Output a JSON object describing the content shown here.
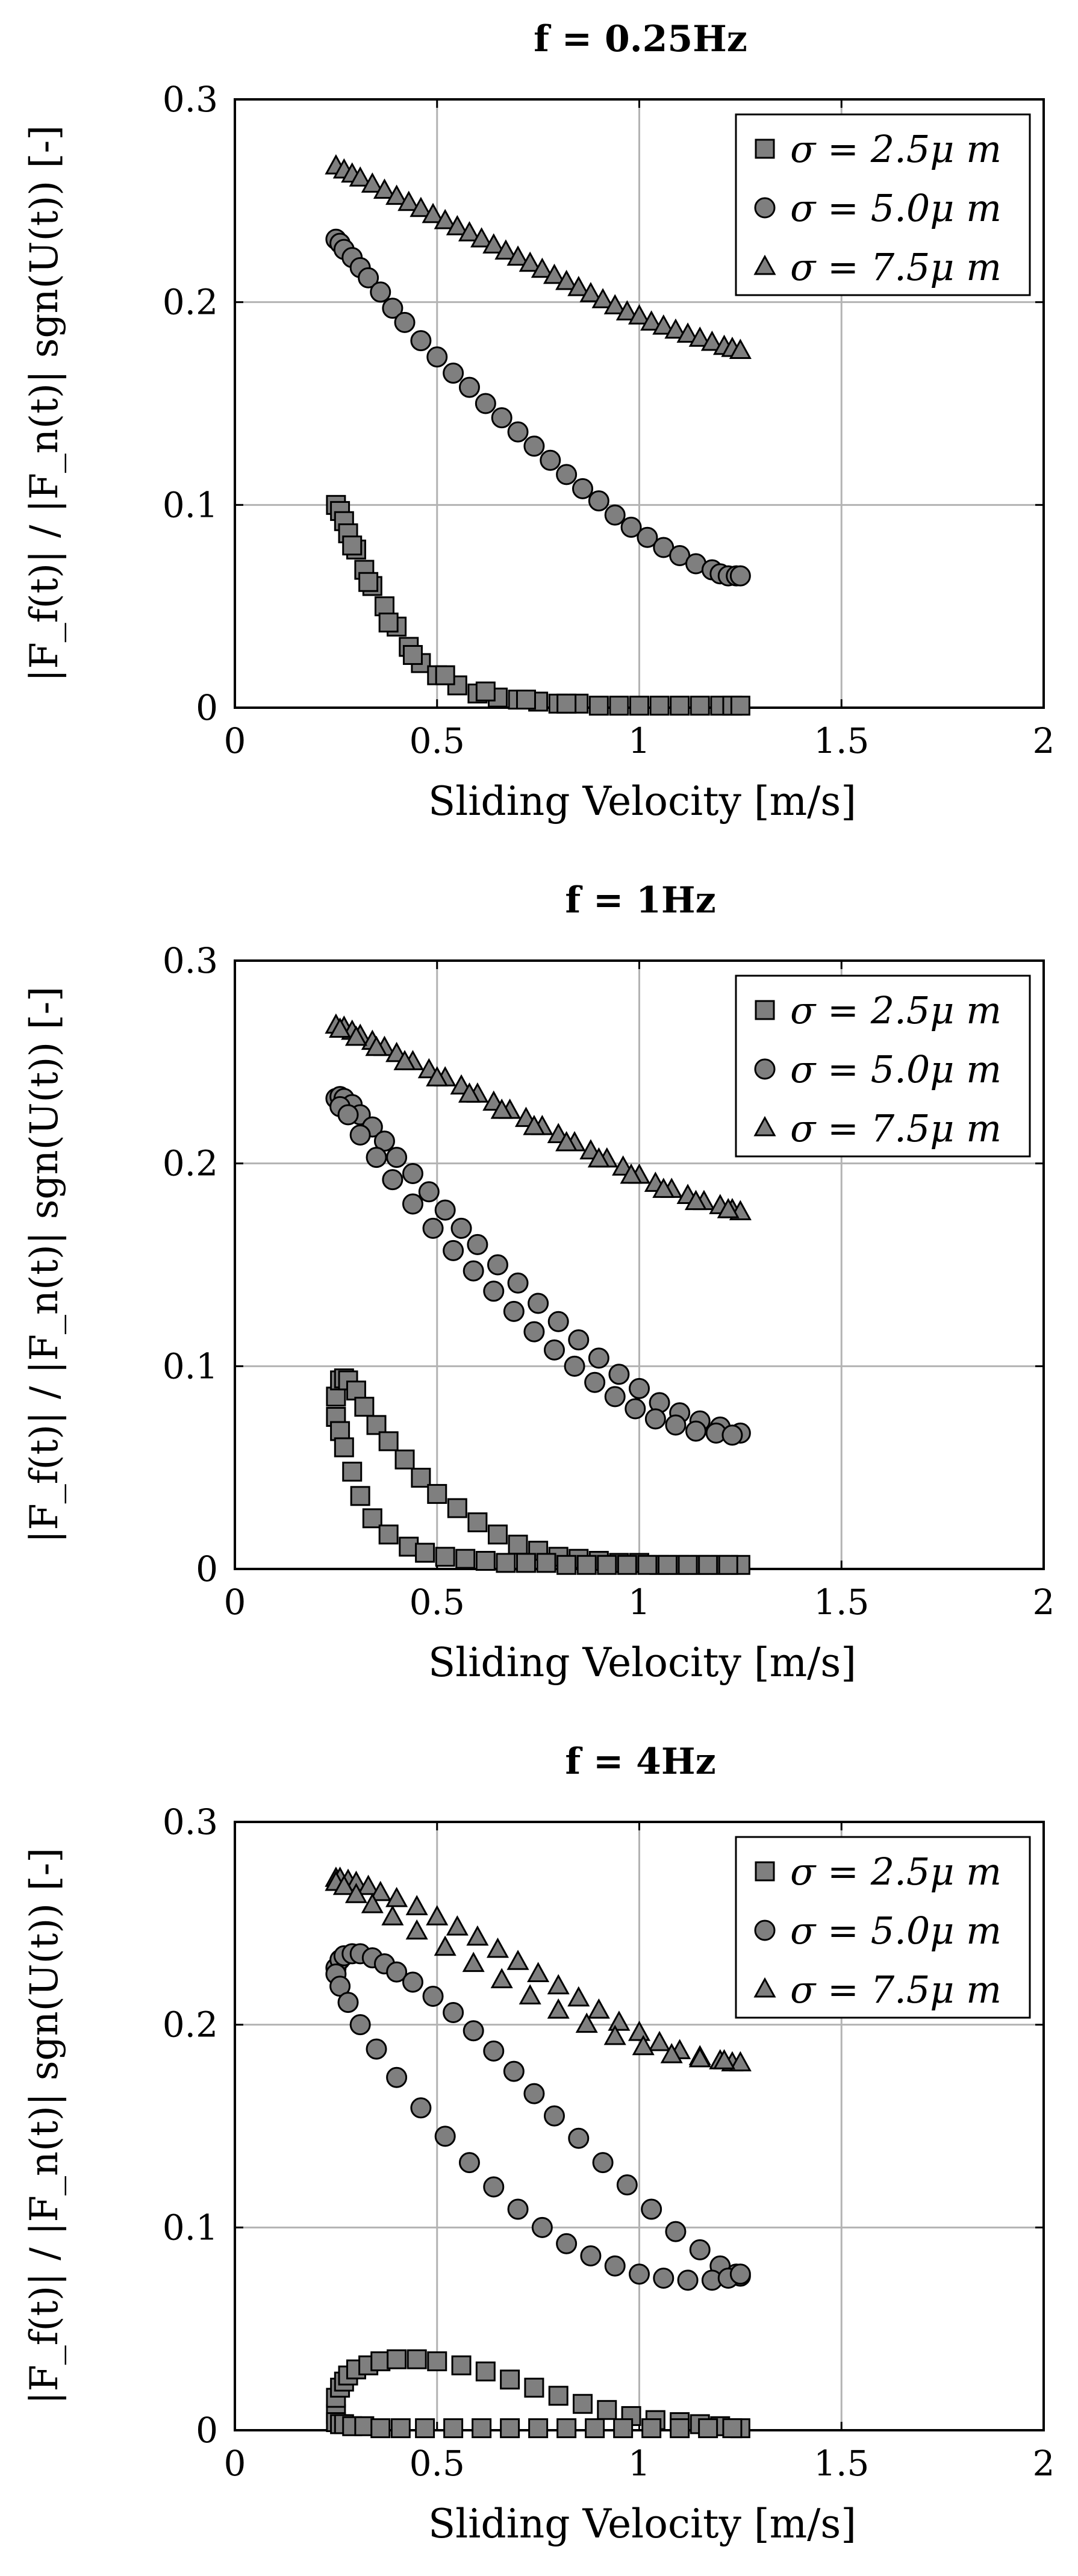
{
  "chart_data": [
    {
      "type": "scatter",
      "title": "f = 0.25Hz",
      "xlabel": "Sliding Velocity [m/s]",
      "ylabel": "|F_f(t)| / |F_n(t)| sgn(U(t)) [-]",
      "xlim": [
        0,
        2
      ],
      "ylim": [
        0,
        0.3
      ],
      "xticks": [
        "0",
        "0.5",
        "1",
        "1.5",
        "2"
      ],
      "yticks": [
        "0",
        "0.1",
        "0.2",
        "0.3"
      ],
      "grid": true,
      "legend_position": "top-right",
      "series": [
        {
          "name": "σ = 2.5μ m",
          "marker": "square",
          "x": [
            0.25,
            0.26,
            0.27,
            0.28,
            0.3,
            0.32,
            0.34,
            0.37,
            0.4,
            0.43,
            0.46,
            0.5,
            0.55,
            0.6,
            0.65,
            0.7,
            0.75,
            0.8,
            0.85,
            0.9,
            0.95,
            1.0,
            1.05,
            1.1,
            1.15,
            1.2,
            1.23,
            1.25,
            0.29,
            0.33,
            0.38,
            0.44,
            0.52,
            0.62,
            0.72,
            0.82
          ],
          "y": [
            0.1,
            0.097,
            0.092,
            0.086,
            0.078,
            0.068,
            0.06,
            0.05,
            0.04,
            0.03,
            0.022,
            0.016,
            0.011,
            0.007,
            0.005,
            0.004,
            0.003,
            0.002,
            0.002,
            0.001,
            0.001,
            0.001,
            0.001,
            0.001,
            0.001,
            0.001,
            0.001,
            0.001,
            0.08,
            0.062,
            0.042,
            0.026,
            0.016,
            0.008,
            0.004,
            0.002
          ]
        },
        {
          "name": "σ = 5.0μ m",
          "marker": "circle",
          "x": [
            0.25,
            0.26,
            0.27,
            0.29,
            0.31,
            0.33,
            0.36,
            0.39,
            0.42,
            0.46,
            0.5,
            0.54,
            0.58,
            0.62,
            0.66,
            0.7,
            0.74,
            0.78,
            0.82,
            0.86,
            0.9,
            0.94,
            0.98,
            1.02,
            1.06,
            1.1,
            1.14,
            1.18,
            1.2,
            1.22,
            1.24,
            1.25
          ],
          "y": [
            0.231,
            0.229,
            0.226,
            0.222,
            0.217,
            0.212,
            0.205,
            0.197,
            0.19,
            0.181,
            0.173,
            0.165,
            0.158,
            0.15,
            0.143,
            0.136,
            0.129,
            0.122,
            0.115,
            0.108,
            0.102,
            0.095,
            0.089,
            0.084,
            0.079,
            0.075,
            0.071,
            0.068,
            0.066,
            0.065,
            0.065,
            0.065
          ]
        },
        {
          "name": "σ = 7.5μ m",
          "marker": "triangle",
          "x": [
            0.25,
            0.27,
            0.29,
            0.31,
            0.34,
            0.37,
            0.4,
            0.43,
            0.46,
            0.49,
            0.52,
            0.55,
            0.58,
            0.61,
            0.64,
            0.67,
            0.7,
            0.73,
            0.76,
            0.79,
            0.82,
            0.85,
            0.88,
            0.91,
            0.94,
            0.97,
            1.0,
            1.03,
            1.06,
            1.09,
            1.12,
            1.15,
            1.18,
            1.21,
            1.23,
            1.25
          ],
          "y": [
            0.267,
            0.265,
            0.263,
            0.261,
            0.258,
            0.255,
            0.252,
            0.249,
            0.246,
            0.243,
            0.24,
            0.237,
            0.234,
            0.231,
            0.228,
            0.225,
            0.222,
            0.219,
            0.216,
            0.213,
            0.21,
            0.207,
            0.204,
            0.201,
            0.198,
            0.195,
            0.193,
            0.19,
            0.188,
            0.186,
            0.184,
            0.182,
            0.18,
            0.178,
            0.177,
            0.176
          ]
        }
      ]
    },
    {
      "type": "scatter",
      "title": "f = 1Hz",
      "xlabel": "Sliding Velocity [m/s]",
      "ylabel": "|F_f(t)| / |F_n(t)| sgn(U(t)) [-]",
      "xlim": [
        0,
        2
      ],
      "ylim": [
        0,
        0.3
      ],
      "xticks": [
        "0",
        "0.5",
        "1",
        "1.5",
        "2"
      ],
      "yticks": [
        "0",
        "0.1",
        "0.2",
        "0.3"
      ],
      "grid": true,
      "legend_position": "top-right",
      "series": [
        {
          "name": "σ = 2.5μ m",
          "marker": "square",
          "x": [
            0.25,
            0.26,
            0.27,
            0.28,
            0.3,
            0.32,
            0.35,
            0.38,
            0.42,
            0.46,
            0.5,
            0.55,
            0.6,
            0.65,
            0.7,
            0.75,
            0.8,
            0.85,
            0.9,
            0.95,
            1.0,
            1.05,
            1.1,
            1.15,
            1.2,
            1.25,
            0.25,
            0.26,
            0.27,
            0.29,
            0.31,
            0.34,
            0.38,
            0.43,
            0.47,
            0.52,
            0.57,
            0.62,
            0.67,
            0.72,
            0.77,
            0.82,
            0.87,
            0.92,
            0.97,
            1.02,
            1.07,
            1.12,
            1.17,
            1.22
          ],
          "y": [
            0.085,
            0.093,
            0.094,
            0.093,
            0.088,
            0.08,
            0.071,
            0.063,
            0.054,
            0.045,
            0.037,
            0.03,
            0.023,
            0.017,
            0.012,
            0.009,
            0.006,
            0.005,
            0.004,
            0.003,
            0.003,
            0.002,
            0.002,
            0.002,
            0.002,
            0.002,
            0.075,
            0.068,
            0.06,
            0.048,
            0.036,
            0.025,
            0.017,
            0.011,
            0.008,
            0.006,
            0.005,
            0.004,
            0.003,
            0.003,
            0.003,
            0.002,
            0.002,
            0.002,
            0.002,
            0.002,
            0.002,
            0.002,
            0.002,
            0.002
          ]
        },
        {
          "name": "σ = 5.0μ m",
          "marker": "circle",
          "x": [
            0.25,
            0.26,
            0.27,
            0.29,
            0.31,
            0.34,
            0.37,
            0.4,
            0.44,
            0.48,
            0.52,
            0.56,
            0.6,
            0.65,
            0.7,
            0.75,
            0.8,
            0.85,
            0.9,
            0.95,
            1.0,
            1.05,
            1.1,
            1.15,
            1.2,
            1.25,
            0.26,
            0.28,
            0.31,
            0.35,
            0.39,
            0.44,
            0.49,
            0.54,
            0.59,
            0.64,
            0.69,
            0.74,
            0.79,
            0.84,
            0.89,
            0.94,
            0.99,
            1.04,
            1.09,
            1.14,
            1.19,
            1.23
          ],
          "y": [
            0.232,
            0.233,
            0.232,
            0.229,
            0.224,
            0.218,
            0.211,
            0.203,
            0.195,
            0.186,
            0.177,
            0.168,
            0.16,
            0.15,
            0.141,
            0.131,
            0.122,
            0.113,
            0.104,
            0.096,
            0.089,
            0.082,
            0.077,
            0.073,
            0.07,
            0.067,
            0.228,
            0.224,
            0.214,
            0.203,
            0.192,
            0.18,
            0.168,
            0.157,
            0.147,
            0.137,
            0.127,
            0.117,
            0.108,
            0.1,
            0.092,
            0.085,
            0.079,
            0.074,
            0.071,
            0.068,
            0.067,
            0.066
          ]
        },
        {
          "name": "σ = 7.5μ m",
          "marker": "triangle",
          "x": [
            0.25,
            0.27,
            0.29,
            0.31,
            0.34,
            0.37,
            0.4,
            0.44,
            0.48,
            0.52,
            0.56,
            0.6,
            0.64,
            0.68,
            0.72,
            0.76,
            0.8,
            0.84,
            0.88,
            0.92,
            0.96,
            1.0,
            1.04,
            1.08,
            1.12,
            1.16,
            1.2,
            1.23,
            1.25,
            0.26,
            0.3,
            0.35,
            0.42,
            0.5,
            0.58,
            0.66,
            0.74,
            0.82,
            0.9,
            0.98,
            1.06,
            1.14,
            1.22
          ],
          "y": [
            0.268,
            0.267,
            0.265,
            0.263,
            0.26,
            0.257,
            0.254,
            0.25,
            0.246,
            0.242,
            0.238,
            0.234,
            0.23,
            0.226,
            0.222,
            0.218,
            0.214,
            0.21,
            0.206,
            0.202,
            0.198,
            0.194,
            0.19,
            0.187,
            0.184,
            0.181,
            0.179,
            0.177,
            0.176,
            0.266,
            0.262,
            0.257,
            0.25,
            0.242,
            0.234,
            0.226,
            0.218,
            0.21,
            0.202,
            0.194,
            0.187,
            0.181,
            0.177
          ]
        }
      ]
    },
    {
      "type": "scatter",
      "title": "f = 4Hz",
      "xlabel": "Sliding Velocity [m/s]",
      "ylabel": "|F_f(t)| / |F_n(t)| sgn(U(t)) [-]",
      "xlim": [
        0,
        2
      ],
      "ylim": [
        0,
        0.3
      ],
      "xticks": [
        "0",
        "0.5",
        "1",
        "1.5",
        "2"
      ],
      "yticks": [
        "0",
        "0.1",
        "0.2",
        "0.3"
      ],
      "grid": true,
      "legend_position": "top-right",
      "series": [
        {
          "name": "σ = 2.5μ m",
          "marker": "square",
          "x": [
            0.25,
            0.25,
            0.26,
            0.27,
            0.28,
            0.3,
            0.33,
            0.36,
            0.4,
            0.45,
            0.5,
            0.56,
            0.62,
            0.68,
            0.74,
            0.8,
            0.86,
            0.92,
            0.98,
            1.04,
            1.1,
            1.15,
            1.2,
            1.25,
            0.25,
            0.26,
            0.27,
            0.29,
            0.32,
            0.36,
            0.41,
            0.47,
            0.54,
            0.61,
            0.68,
            0.75,
            0.82,
            0.89,
            0.96,
            1.03,
            1.1,
            1.17,
            1.23
          ],
          "y": [
            0.008,
            0.016,
            0.021,
            0.024,
            0.027,
            0.03,
            0.032,
            0.034,
            0.035,
            0.035,
            0.034,
            0.032,
            0.029,
            0.025,
            0.021,
            0.017,
            0.013,
            0.01,
            0.007,
            0.005,
            0.004,
            0.003,
            0.002,
            0.001,
            0.004,
            0.003,
            0.003,
            0.002,
            0.002,
            0.001,
            0.001,
            0.001,
            0.001,
            0.001,
            0.001,
            0.001,
            0.001,
            0.001,
            0.001,
            0.001,
            0.001,
            0.001,
            0.001
          ]
        },
        {
          "name": "σ = 5.0μ m",
          "marker": "circle",
          "x": [
            0.25,
            0.26,
            0.27,
            0.29,
            0.31,
            0.34,
            0.37,
            0.4,
            0.44,
            0.49,
            0.54,
            0.59,
            0.64,
            0.69,
            0.74,
            0.79,
            0.85,
            0.91,
            0.97,
            1.03,
            1.09,
            1.15,
            1.2,
            1.24,
            1.25,
            0.25,
            0.26,
            0.28,
            0.31,
            0.35,
            0.4,
            0.46,
            0.52,
            0.58,
            0.64,
            0.7,
            0.76,
            0.82,
            0.88,
            0.94,
            1.0,
            1.06,
            1.12,
            1.18,
            1.22,
            1.25
          ],
          "y": [
            0.228,
            0.232,
            0.234,
            0.235,
            0.235,
            0.233,
            0.23,
            0.226,
            0.221,
            0.214,
            0.206,
            0.197,
            0.187,
            0.177,
            0.166,
            0.155,
            0.144,
            0.132,
            0.121,
            0.109,
            0.098,
            0.089,
            0.081,
            0.077,
            0.076,
            0.225,
            0.219,
            0.211,
            0.2,
            0.188,
            0.174,
            0.159,
            0.145,
            0.132,
            0.12,
            0.109,
            0.1,
            0.092,
            0.086,
            0.081,
            0.077,
            0.075,
            0.074,
            0.074,
            0.075,
            0.077
          ]
        },
        {
          "name": "σ = 7.5μ m",
          "marker": "triangle",
          "x": [
            0.25,
            0.26,
            0.28,
            0.3,
            0.33,
            0.36,
            0.4,
            0.45,
            0.5,
            0.55,
            0.6,
            0.65,
            0.7,
            0.75,
            0.8,
            0.85,
            0.9,
            0.95,
            1.0,
            1.05,
            1.1,
            1.15,
            1.2,
            1.23,
            1.25,
            0.25,
            0.27,
            0.3,
            0.34,
            0.39,
            0.45,
            0.52,
            0.59,
            0.66,
            0.73,
            0.8,
            0.87,
            0.94,
            1.01,
            1.08,
            1.15,
            1.21
          ],
          "y": [
            0.272,
            0.272,
            0.271,
            0.27,
            0.268,
            0.265,
            0.262,
            0.258,
            0.253,
            0.248,
            0.243,
            0.237,
            0.231,
            0.225,
            0.219,
            0.213,
            0.207,
            0.201,
            0.196,
            0.191,
            0.187,
            0.184,
            0.182,
            0.181,
            0.181,
            0.27,
            0.268,
            0.264,
            0.259,
            0.253,
            0.246,
            0.238,
            0.23,
            0.222,
            0.214,
            0.207,
            0.2,
            0.194,
            0.189,
            0.185,
            0.183,
            0.182
          ]
        }
      ]
    }
  ]
}
